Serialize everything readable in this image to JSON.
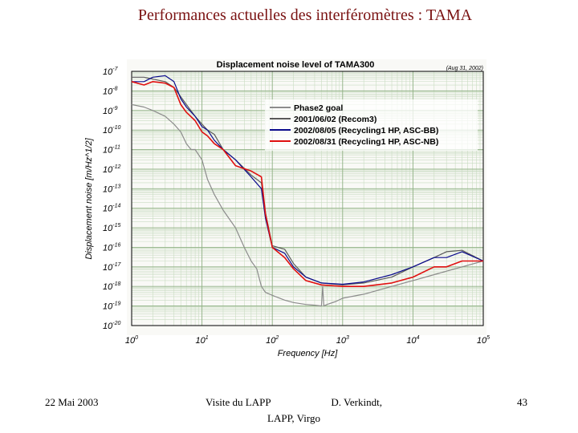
{
  "slide": {
    "title": "Performances actuelles des interféromètres : TAMA",
    "footer_date": "22 Mai 2003",
    "footer_event": "Visite du LAPP",
    "footer_author": "D. Verkindt,",
    "footer_affiliation": "LAPP, Virgo",
    "page_number": "43"
  },
  "chart_data": {
    "type": "line",
    "title": "Displacement noise level of TAMA300",
    "date_note": "(Aug 31, 2002)",
    "xlabel": "Frequency [Hz]",
    "ylabel": "Displacement noise [m/Hz^1/2]",
    "xscale": "log",
    "yscale": "log",
    "xlim": [
      1,
      100000
    ],
    "ylim": [
      1e-20,
      1e-07
    ],
    "x_ticks": [
      {
        "value": 1,
        "base": "10",
        "exp": "0"
      },
      {
        "value": 10,
        "base": "10",
        "exp": "1"
      },
      {
        "value": 100,
        "base": "10",
        "exp": "2"
      },
      {
        "value": 1000,
        "base": "10",
        "exp": "3"
      },
      {
        "value": 10000,
        "base": "10",
        "exp": "4"
      },
      {
        "value": 100000,
        "base": "10",
        "exp": "5"
      }
    ],
    "y_ticks": [
      {
        "value": 1e-07,
        "base": "10",
        "exp": "-7"
      },
      {
        "value": 1e-08,
        "base": "10",
        "exp": "-8"
      },
      {
        "value": 1e-09,
        "base": "10",
        "exp": "-9"
      },
      {
        "value": 1e-10,
        "base": "10",
        "exp": "-10"
      },
      {
        "value": 1e-11,
        "base": "10",
        "exp": "-11"
      },
      {
        "value": 1e-12,
        "base": "10",
        "exp": "-12"
      },
      {
        "value": 1e-13,
        "base": "10",
        "exp": "-13"
      },
      {
        "value": 1e-14,
        "base": "10",
        "exp": "-14"
      },
      {
        "value": 1e-15,
        "base": "10",
        "exp": "-15"
      },
      {
        "value": 1e-16,
        "base": "10",
        "exp": "-16"
      },
      {
        "value": 1e-17,
        "base": "10",
        "exp": "-17"
      },
      {
        "value": 1e-18,
        "base": "10",
        "exp": "-18"
      },
      {
        "value": 1e-19,
        "base": "10",
        "exp": "-19"
      },
      {
        "value": 1e-20,
        "base": "10",
        "exp": "-20"
      }
    ],
    "grid": true,
    "legend_position": "top-right",
    "series": [
      {
        "name": "Phase2 goal",
        "color": "#8c8c8c",
        "x": [
          1,
          1.5,
          2,
          3,
          4,
          5,
          6,
          7,
          8,
          10,
          12,
          15,
          20,
          30,
          40,
          50,
          60,
          70,
          80,
          100,
          150,
          200,
          300,
          400,
          500,
          520,
          540,
          600,
          800,
          1000,
          2000,
          5000,
          10000,
          20000,
          50000,
          100000
        ],
        "y": [
          2e-09,
          1.5e-09,
          1e-09,
          5e-10,
          2e-10,
          8e-11,
          2e-11,
          1e-11,
          1e-11,
          3e-12,
          3e-13,
          5e-14,
          8e-15,
          1e-15,
          1e-16,
          2e-17,
          8e-18,
          1e-18,
          5e-19,
          3.5e-19,
          2e-19,
          1.5e-19,
          1.2e-19,
          1.1e-19,
          1e-19,
          1e-18,
          1e-19,
          1.2e-19,
          1.7e-19,
          2.5e-19,
          4e-19,
          1e-18,
          2e-18,
          4e-18,
          1e-17,
          2e-17
        ]
      },
      {
        "name": "2001/06/02 (Recom3)",
        "color": "#5a5a5a",
        "x": [
          1,
          1.5,
          2,
          3,
          4,
          5,
          6,
          8,
          10,
          12,
          15,
          20,
          30,
          50,
          70,
          80,
          100,
          150,
          200,
          300,
          500,
          1000,
          2000,
          5000,
          10000,
          20000,
          30000,
          50000,
          100000
        ],
        "y": [
          5e-08,
          5e-08,
          4e-08,
          3e-08,
          1.5e-08,
          5e-09,
          2e-09,
          5e-10,
          2e-10,
          1e-10,
          6e-11,
          1e-11,
          3e-12,
          5e-13,
          2e-13,
          6e-15,
          1.2e-16,
          8e-17,
          1.5e-17,
          3e-18,
          1.5e-18,
          1.2e-18,
          1.5e-18,
          3e-18,
          1e-17,
          3e-17,
          6e-17,
          7e-17,
          2e-17
        ]
      },
      {
        "name": "2002/08/05 (Recycling1 HP, ASC-BB)",
        "color": "#0a0a8c",
        "x": [
          1,
          1.5,
          2,
          3,
          4,
          5,
          6,
          8,
          10,
          12,
          15,
          20,
          30,
          50,
          70,
          80,
          100,
          150,
          200,
          300,
          500,
          1000,
          2000,
          5000,
          10000,
          20000,
          30000,
          50000,
          100000
        ],
        "y": [
          3e-08,
          3e-08,
          5e-08,
          6e-08,
          3e-08,
          4e-09,
          1.5e-09,
          5e-10,
          1.5e-10,
          1e-10,
          3e-11,
          1e-11,
          3e-12,
          4e-13,
          1e-13,
          3e-15,
          1e-16,
          5e-17,
          1e-17,
          3e-18,
          1.5e-18,
          1.3e-18,
          1.7e-18,
          4e-18,
          1e-17,
          3e-17,
          3e-17,
          6e-17,
          2e-17
        ]
      },
      {
        "name": "2002/08/31 (Recycling1 HP, ASC-NB)",
        "color": "#e01010",
        "x": [
          1,
          1.5,
          2,
          3,
          4,
          5,
          6,
          8,
          10,
          12,
          15,
          20,
          30,
          50,
          70,
          80,
          100,
          150,
          200,
          300,
          500,
          1000,
          2000,
          5000,
          10000,
          20000,
          30000,
          50000,
          100000
        ],
        "y": [
          3e-08,
          2e-08,
          3e-08,
          2.5e-08,
          1.5e-08,
          2e-09,
          8e-10,
          3e-10,
          8e-11,
          5e-11,
          2e-11,
          1e-11,
          1.5e-12,
          8e-13,
          4e-13,
          5e-15,
          1e-16,
          3e-17,
          8e-18,
          2e-18,
          1.2e-18,
          1e-18,
          1e-18,
          1.5e-18,
          3e-18,
          1e-17,
          1e-17,
          2e-17,
          2e-17
        ]
      }
    ]
  }
}
